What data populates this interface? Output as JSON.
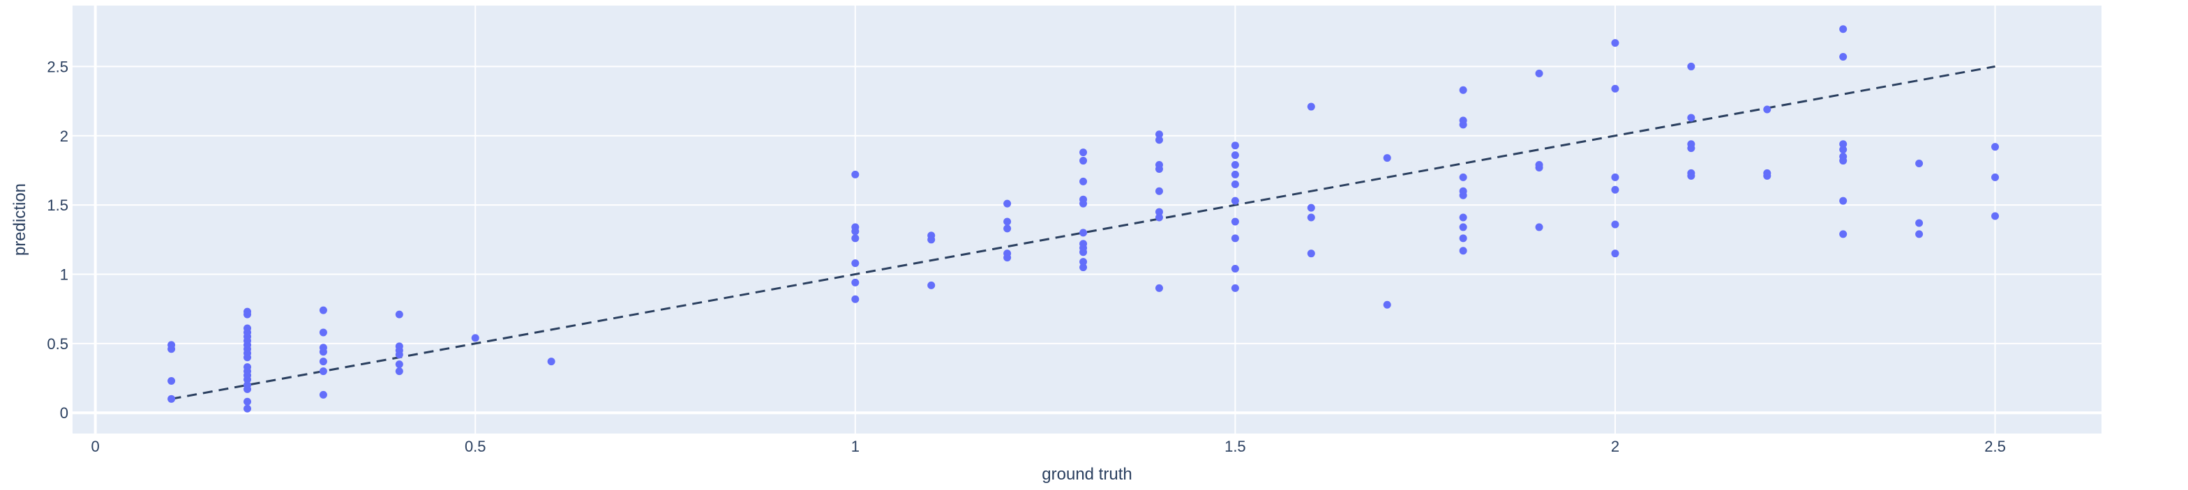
{
  "chart_data": {
    "type": "scatter",
    "xlabel": "ground truth",
    "ylabel": "prediction",
    "xlim": [
      -0.03,
      2.64
    ],
    "ylim": [
      -0.15,
      2.94
    ],
    "x_ticks": [
      0,
      0.5,
      1,
      1.5,
      2,
      2.5
    ],
    "y_ticks": [
      0,
      0.5,
      1,
      1.5,
      2,
      2.5
    ],
    "grid": true,
    "colors": {
      "plot_bg": "#e5ecf6",
      "grid": "#ffffff",
      "marker": "#636efa",
      "line": "#2a3f5f",
      "text": "#2a3f5f"
    },
    "series": [
      {
        "mode": "markers",
        "points": [
          [
            0.1,
            0.1
          ],
          [
            0.1,
            0.23
          ],
          [
            0.1,
            0.46
          ],
          [
            0.1,
            0.49
          ],
          [
            0.2,
            0.03
          ],
          [
            0.2,
            0.08
          ],
          [
            0.2,
            0.17
          ],
          [
            0.2,
            0.2
          ],
          [
            0.2,
            0.24
          ],
          [
            0.2,
            0.27
          ],
          [
            0.2,
            0.3
          ],
          [
            0.2,
            0.33
          ],
          [
            0.2,
            0.4
          ],
          [
            0.2,
            0.43
          ],
          [
            0.2,
            0.46
          ],
          [
            0.2,
            0.49
          ],
          [
            0.2,
            0.52
          ],
          [
            0.2,
            0.55
          ],
          [
            0.2,
            0.58
          ],
          [
            0.2,
            0.61
          ],
          [
            0.2,
            0.71
          ],
          [
            0.2,
            0.73
          ],
          [
            0.3,
            0.13
          ],
          [
            0.3,
            0.3
          ],
          [
            0.3,
            0.37
          ],
          [
            0.3,
            0.44
          ],
          [
            0.3,
            0.47
          ],
          [
            0.3,
            0.58
          ],
          [
            0.3,
            0.74
          ],
          [
            0.4,
            0.3
          ],
          [
            0.4,
            0.35
          ],
          [
            0.4,
            0.42
          ],
          [
            0.4,
            0.45
          ],
          [
            0.4,
            0.48
          ],
          [
            0.4,
            0.71
          ],
          [
            0.5,
            0.54
          ],
          [
            0.6,
            0.37
          ],
          [
            1.0,
            0.82
          ],
          [
            1.0,
            0.94
          ],
          [
            1.0,
            1.08
          ],
          [
            1.0,
            1.26
          ],
          [
            1.0,
            1.31
          ],
          [
            1.0,
            1.34
          ],
          [
            1.0,
            1.72
          ],
          [
            1.1,
            0.92
          ],
          [
            1.1,
            1.25
          ],
          [
            1.1,
            1.28
          ],
          [
            1.2,
            1.12
          ],
          [
            1.2,
            1.15
          ],
          [
            1.2,
            1.33
          ],
          [
            1.2,
            1.38
          ],
          [
            1.2,
            1.51
          ],
          [
            1.3,
            1.05
          ],
          [
            1.3,
            1.09
          ],
          [
            1.3,
            1.16
          ],
          [
            1.3,
            1.19
          ],
          [
            1.3,
            1.22
          ],
          [
            1.3,
            1.3
          ],
          [
            1.3,
            1.51
          ],
          [
            1.3,
            1.54
          ],
          [
            1.3,
            1.67
          ],
          [
            1.3,
            1.82
          ],
          [
            1.3,
            1.88
          ],
          [
            1.4,
            0.9
          ],
          [
            1.4,
            1.41
          ],
          [
            1.4,
            1.45
          ],
          [
            1.4,
            1.6
          ],
          [
            1.4,
            1.76
          ],
          [
            1.4,
            1.79
          ],
          [
            1.4,
            1.97
          ],
          [
            1.4,
            2.01
          ],
          [
            1.5,
            0.9
          ],
          [
            1.5,
            1.04
          ],
          [
            1.5,
            1.26
          ],
          [
            1.5,
            1.38
          ],
          [
            1.5,
            1.53
          ],
          [
            1.5,
            1.65
          ],
          [
            1.5,
            1.72
          ],
          [
            1.5,
            1.79
          ],
          [
            1.5,
            1.86
          ],
          [
            1.5,
            1.93
          ],
          [
            1.6,
            1.15
          ],
          [
            1.6,
            1.41
          ],
          [
            1.6,
            1.48
          ],
          [
            1.6,
            2.21
          ],
          [
            1.7,
            0.78
          ],
          [
            1.7,
            1.84
          ],
          [
            1.8,
            1.17
          ],
          [
            1.8,
            1.26
          ],
          [
            1.8,
            1.34
          ],
          [
            1.8,
            1.41
          ],
          [
            1.8,
            1.57
          ],
          [
            1.8,
            1.6
          ],
          [
            1.8,
            1.7
          ],
          [
            1.8,
            2.08
          ],
          [
            1.8,
            2.11
          ],
          [
            1.8,
            2.33
          ],
          [
            1.9,
            1.34
          ],
          [
            1.9,
            1.77
          ],
          [
            1.9,
            1.79
          ],
          [
            1.9,
            2.45
          ],
          [
            2.0,
            1.15
          ],
          [
            2.0,
            1.36
          ],
          [
            2.0,
            1.61
          ],
          [
            2.0,
            1.7
          ],
          [
            2.0,
            2.34
          ],
          [
            2.0,
            2.67
          ],
          [
            2.1,
            1.71
          ],
          [
            2.1,
            1.73
          ],
          [
            2.1,
            1.91
          ],
          [
            2.1,
            1.94
          ],
          [
            2.1,
            2.13
          ],
          [
            2.1,
            2.5
          ],
          [
            2.2,
            1.71
          ],
          [
            2.2,
            1.73
          ],
          [
            2.2,
            2.19
          ],
          [
            2.3,
            1.29
          ],
          [
            2.3,
            1.53
          ],
          [
            2.3,
            1.82
          ],
          [
            2.3,
            1.85
          ],
          [
            2.3,
            1.9
          ],
          [
            2.3,
            1.94
          ],
          [
            2.3,
            2.57
          ],
          [
            2.3,
            2.77
          ],
          [
            2.4,
            1.29
          ],
          [
            2.4,
            1.37
          ],
          [
            2.4,
            1.8
          ],
          [
            2.5,
            1.42
          ],
          [
            2.5,
            1.7
          ],
          [
            2.5,
            1.92
          ]
        ]
      },
      {
        "mode": "lines",
        "dash": "dash",
        "points": [
          [
            0.1,
            0.1
          ],
          [
            2.5,
            2.5
          ]
        ]
      }
    ]
  }
}
